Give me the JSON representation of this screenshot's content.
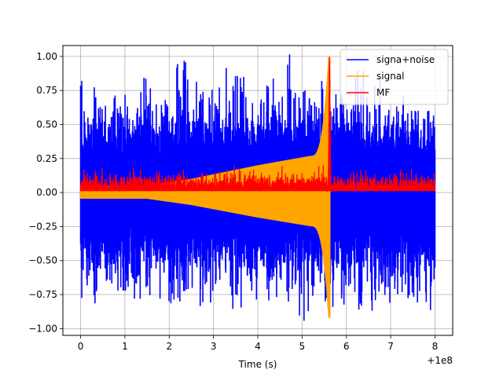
{
  "chart_data": {
    "type": "line",
    "title": "",
    "xlabel": "Time (s)",
    "ylabel": "",
    "x_offset_label": "+1e8",
    "xlim": [
      -0.4,
      8.4
    ],
    "ylim": [
      -1.05,
      1.08
    ],
    "xticks": [
      0,
      1,
      2,
      3,
      4,
      5,
      6,
      7,
      8
    ],
    "yticks": [
      -1.0,
      -0.75,
      -0.5,
      -0.25,
      0.0,
      0.25,
      0.5,
      0.75,
      1.0
    ],
    "ytick_labels": [
      "−1.00",
      "−0.75",
      "−0.50",
      "−0.25",
      "0.00",
      "0.25",
      "0.50",
      "0.75",
      "1.00"
    ],
    "grid": true,
    "legend_position": "top-right",
    "series": [
      {
        "name": "signa+noise",
        "color": "#0000ff",
        "x_range": [
          0,
          8
        ],
        "pos_peaks": [
          0.82,
          0.72,
          0.85,
          0.68,
          0.98,
          0.78,
          0.95,
          0.83,
          1.02,
          0.75,
          0.82,
          0.97,
          0.85,
          0.8,
          0.6
        ],
        "neg_troughs": [
          -0.82,
          -0.72,
          -0.78,
          -0.88,
          -0.8,
          -0.86,
          -0.9,
          -0.83,
          -0.82,
          -0.95,
          -0.96,
          -0.88,
          -0.9,
          -0.82,
          -0.88
        ]
      },
      {
        "name": "signal",
        "color": "#ffa500",
        "x_range": [
          0,
          5.63
        ],
        "envelope": {
          "start": 0.05,
          "at_2": 0.1,
          "at_3": 0.18,
          "at_4": 0.2,
          "at_5": 0.27,
          "at_5.4": 0.4,
          "peak": 1.0,
          "peak_x": 5.6
        }
      },
      {
        "name": "MF",
        "color": "#ff0000",
        "x_range": [
          0,
          8
        ],
        "baseline_band": [
          0.0,
          0.16
        ],
        "peak": 1.0,
        "peak_x": 5.62,
        "post_peak_level": 0.08
      }
    ]
  }
}
